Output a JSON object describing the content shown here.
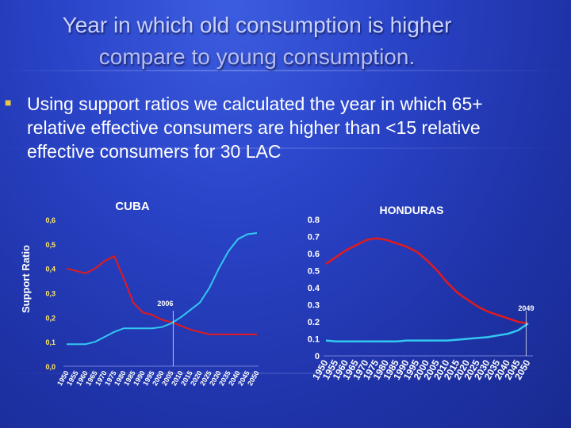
{
  "slide": {
    "title_line1": "Year in which old consumption is higher",
    "title_line2": "compare to young consumption.",
    "bullet_icon": "square-bullet-icon",
    "bullet_text": "Using support ratios we calculated the year in which 65+ relative effective consumers are higher than <15 relative effective consumers for 30 LAC",
    "ylabel": "Support Ratio"
  },
  "colors": {
    "young": "#e31a1c",
    "old": "#33c8f0",
    "title": "#c9d2ff",
    "ticks": "#ffe86a"
  },
  "chart_data": [
    {
      "type": "line",
      "title": "CUBA",
      "ylabel": "Support Ratio",
      "xlabel": "",
      "ylim": [
        0,
        0.6
      ],
      "yticks": [
        "0,0",
        "0,1",
        "0,2",
        "0,3",
        "0,4",
        "0,5",
        "0,6"
      ],
      "x": [
        1950,
        1955,
        1960,
        1965,
        1970,
        1975,
        1980,
        1985,
        1990,
        1995,
        2000,
        2005,
        2010,
        2015,
        2020,
        2025,
        2030,
        2035,
        2040,
        2045,
        2050
      ],
      "xticks": [
        "1950",
        "1955",
        "1960",
        "1965",
        "1970",
        "1975",
        "1980",
        "1985",
        "1990",
        "1995",
        "2000",
        "2005",
        "2010",
        "2015",
        "2020",
        "2025",
        "2030",
        "2035",
        "2040",
        "2045",
        "2050"
      ],
      "series": [
        {
          "role": "young",
          "values": [
            0.4,
            0.39,
            0.38,
            0.4,
            0.43,
            0.45,
            0.36,
            0.26,
            0.22,
            0.21,
            0.19,
            0.18,
            0.165,
            0.15,
            0.14,
            0.13,
            0.13,
            0.13,
            0.13,
            0.13,
            0.13
          ]
        },
        {
          "role": "old",
          "values": [
            0.09,
            0.09,
            0.09,
            0.1,
            0.12,
            0.14,
            0.155,
            0.155,
            0.155,
            0.155,
            0.16,
            0.175,
            0.2,
            0.23,
            0.26,
            0.32,
            0.4,
            0.47,
            0.52,
            0.54,
            0.545
          ]
        }
      ],
      "annotations": [
        {
          "text": "2006",
          "x": 2006
        }
      ],
      "grid": false
    },
    {
      "type": "line",
      "title": "HONDURAS",
      "ylim": [
        0,
        0.8
      ],
      "yticks": [
        "0",
        "0.1",
        "0.2",
        "0.3",
        "0.4",
        "0.5",
        "0.6",
        "0.7",
        "0.8"
      ],
      "x": [
        1950,
        1955,
        1960,
        1965,
        1970,
        1975,
        1980,
        1985,
        1990,
        1995,
        2000,
        2005,
        2010,
        2015,
        2020,
        2025,
        2030,
        2035,
        2040,
        2045,
        2050
      ],
      "xticks": [
        "1950",
        "1955",
        "1960",
        "1965",
        "1970",
        "1975",
        "1980",
        "1985",
        "1990",
        "1995",
        "2000",
        "2005",
        "2010",
        "2015",
        "2020",
        "2025",
        "2030",
        "2035",
        "2040",
        "2045",
        "2050"
      ],
      "series": [
        {
          "role": "young",
          "values": [
            0.54,
            0.58,
            0.62,
            0.65,
            0.68,
            0.69,
            0.68,
            0.66,
            0.64,
            0.61,
            0.56,
            0.5,
            0.43,
            0.37,
            0.33,
            0.29,
            0.26,
            0.24,
            0.22,
            0.2,
            0.19
          ]
        },
        {
          "role": "old",
          "values": [
            0.09,
            0.085,
            0.085,
            0.085,
            0.085,
            0.085,
            0.085,
            0.085,
            0.09,
            0.09,
            0.09,
            0.09,
            0.09,
            0.095,
            0.1,
            0.105,
            0.11,
            0.12,
            0.13,
            0.15,
            0.19
          ]
        }
      ],
      "annotations": [
        {
          "text": "2049",
          "x": 2049
        }
      ],
      "grid": false
    }
  ]
}
